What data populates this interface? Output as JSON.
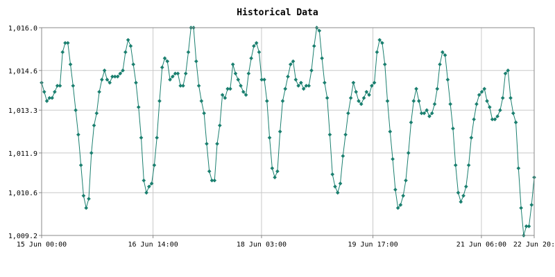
{
  "chart_data": {
    "type": "line",
    "title": "Historical Data",
    "xlabel": "",
    "ylabel": "",
    "ylim": [
      1009.2,
      1016.0
    ],
    "yticks": [
      1009.2,
      1010.6,
      1011.9,
      1013.3,
      1014.6,
      1016.0
    ],
    "ytick_labels": [
      "1,009.2",
      "1,010.6",
      "1,011.9",
      "1,013.3",
      "1,014.6",
      "1,016.0"
    ],
    "xlim_hours": [
      0,
      168
    ],
    "xticks_hours": [
      0,
      38,
      75,
      113,
      150,
      168
    ],
    "xtick_labels": [
      "15 Jun 00:00",
      "16 Jun 14:00",
      "18 Jun 03:00",
      "19 Jun 17:00",
      "21 Jun 06:00",
      "22 Jun 20:"
    ],
    "grid": true,
    "colors": {
      "series": "#1a7f6f",
      "grid": "#c8c8c8",
      "frame": "#888888"
    },
    "x_unit": "hours since 15 Jun 00:00",
    "series": [
      {
        "values": [
          1014.2,
          1013.9,
          1013.6,
          1013.7,
          1013.7,
          1013.9,
          1014.1,
          1014.1,
          1015.2,
          1015.5,
          1015.5,
          1014.8,
          1014.1,
          1013.3,
          1012.5,
          1011.5,
          1010.5,
          1010.1,
          1010.4,
          1011.9,
          1012.8,
          1013.2,
          1013.9,
          1014.3,
          1014.6,
          1014.3,
          1014.2,
          1014.4,
          1014.4,
          1014.4,
          1014.5,
          1014.6,
          1015.2,
          1015.6,
          1015.4,
          1014.8,
          1014.2,
          1013.4,
          1012.4,
          1011.0,
          1010.6,
          1010.8,
          1010.9,
          1011.5,
          1012.4,
          1013.6,
          1014.7,
          1015.0,
          1014.9,
          1014.3,
          1014.4,
          1014.5,
          1014.5,
          1014.1,
          1014.1,
          1014.5,
          1015.2,
          1016.0,
          1016.0,
          1014.9,
          1014.1,
          1013.6,
          1013.2,
          1012.2,
          1011.3,
          1011.0,
          1011.0,
          1012.2,
          1012.8,
          1013.8,
          1013.7,
          1014.0,
          1014.0,
          1014.8,
          1014.5,
          1014.3,
          1014.1,
          1013.9,
          1013.8,
          1014.5,
          1015.0,
          1015.4,
          1015.5,
          1015.2,
          1014.3,
          1014.3,
          1013.6,
          1012.4,
          1011.4,
          1011.1,
          1011.3,
          1012.6,
          1013.6,
          1014.0,
          1014.4,
          1014.8,
          1014.9,
          1014.3,
          1014.1,
          1014.2,
          1014.0,
          1014.1,
          1014.1,
          1014.6,
          1015.4,
          1016.0,
          1015.9,
          1015.0,
          1014.2,
          1013.7,
          1012.5,
          1011.2,
          1010.8,
          1010.6,
          1010.9,
          1011.8,
          1012.5,
          1013.2,
          1013.7,
          1014.2,
          1013.9,
          1013.6,
          1013.5,
          1013.7,
          1013.9,
          1013.8,
          1014.1,
          1014.2,
          1015.2,
          1015.6,
          1015.5,
          1014.8,
          1013.6,
          1012.6,
          1011.7,
          1010.7,
          1010.1,
          1010.2,
          1010.5,
          1011.0,
          1011.9,
          1012.9,
          1013.6,
          1014.0,
          1013.6,
          1013.2,
          1013.2,
          1013.3,
          1013.1,
          1013.2,
          1013.5,
          1014.0,
          1014.8,
          1015.2,
          1015.1,
          1014.3,
          1013.5,
          1012.7,
          1011.5,
          1010.6,
          1010.3,
          1010.5,
          1010.8,
          1011.5,
          1012.4,
          1013.0,
          1013.5,
          1013.8,
          1013.9,
          1014.0,
          1013.6,
          1013.4,
          1013.0,
          1013.0,
          1013.1,
          1013.3,
          1013.7,
          1014.5,
          1014.6,
          1013.7,
          1013.2,
          1012.9,
          1011.4,
          1010.1,
          1009.2,
          1009.5,
          1009.5,
          1010.2,
          1011.1
        ]
      }
    ]
  }
}
